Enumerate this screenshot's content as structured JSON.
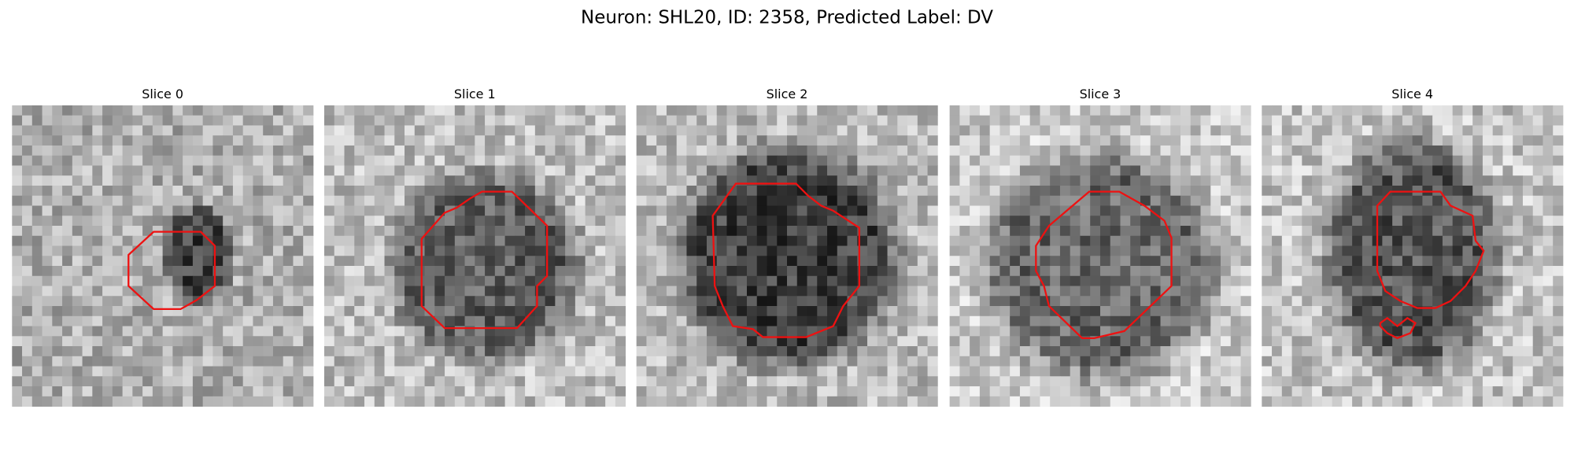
{
  "title": "Neuron: SHL20, ID: 2358, Predicted Label: DV",
  "panels": [
    {
      "title": "Slice 0"
    },
    {
      "title": "Slice 1"
    },
    {
      "title": "Slice 2"
    },
    {
      "title": "Slice 3"
    },
    {
      "title": "Slice 4"
    }
  ]
}
